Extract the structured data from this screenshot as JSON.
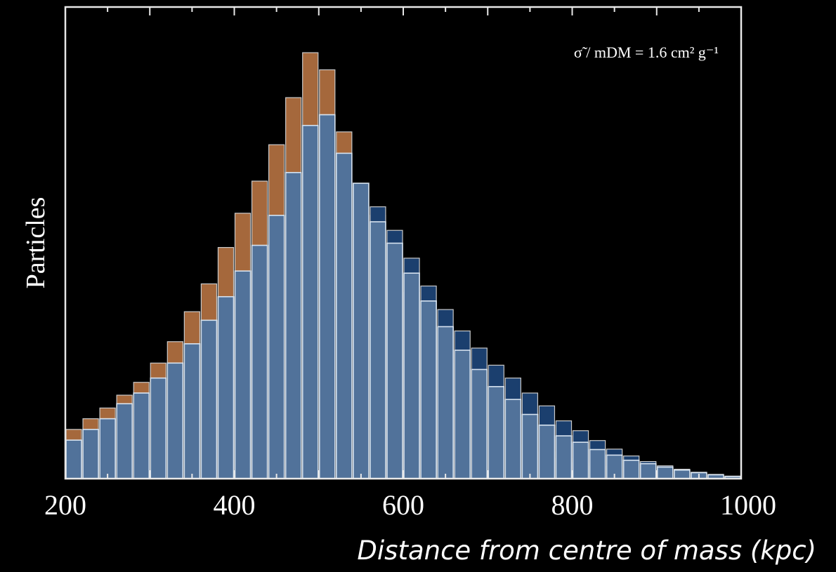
{
  "chart_data": {
    "type": "bar",
    "title": "",
    "annotation": "σ̃ / mDM = 1.6  cm² g⁻¹",
    "xlabel": "Distance from centre of mass (kpc)",
    "ylabel": "Particles",
    "xlim": [
      200,
      1000
    ],
    "ylim": [
      0,
      100
    ],
    "x_ticks": [
      200,
      400,
      600,
      800,
      1000
    ],
    "y_ticks_labeled": false,
    "bin_width": 20,
    "bin_starts": [
      200,
      220,
      240,
      260,
      280,
      300,
      320,
      340,
      360,
      380,
      400,
      420,
      440,
      460,
      480,
      500,
      520,
      540,
      560,
      580,
      600,
      620,
      640,
      660,
      680,
      700,
      720,
      740,
      760,
      780,
      800,
      820,
      840,
      860,
      880,
      900,
      920,
      940,
      960,
      980
    ],
    "series": [
      {
        "color": "#a5683c",
        "values": [
          11.5,
          14.0,
          16.5,
          19.5,
          22.5,
          27.0,
          32.0,
          39.0,
          45.5,
          54.0,
          62.0,
          69.5,
          78.0,
          89.0,
          99.5,
          95.5,
          81.0,
          69.0,
          61.5,
          51.0,
          43.5,
          34.5,
          27.0,
          22.0,
          17.0,
          13.0,
          10.2,
          8.0,
          6.2,
          4.7,
          3.7,
          2.9,
          2.2,
          1.8,
          1.3,
          1.0,
          0.8,
          0.5,
          0.35,
          0.2
        ]
      },
      {
        "color": "#1b3f6e",
        "values": [
          9.0,
          11.5,
          14.0,
          17.5,
          20.0,
          23.5,
          27.0,
          31.5,
          37.0,
          42.5,
          48.5,
          54.5,
          61.5,
          71.5,
          82.5,
          85.0,
          76.0,
          69.0,
          63.5,
          58.0,
          51.5,
          45.0,
          39.5,
          34.5,
          30.5,
          26.5,
          23.5,
          20.0,
          17.0,
          13.5,
          11.2,
          8.9,
          6.9,
          5.3,
          4.0,
          3.0,
          2.2,
          1.5,
          1.0,
          0.6
        ]
      },
      {
        "color": "#7d9cc0",
        "values": [
          9.0,
          11.5,
          14.0,
          17.5,
          20.0,
          23.5,
          27.0,
          31.5,
          37.0,
          42.5,
          48.5,
          54.5,
          61.5,
          71.5,
          82.5,
          85.0,
          76.0,
          69.0,
          60.0,
          55.0,
          48.0,
          41.5,
          35.5,
          30.0,
          25.5,
          21.5,
          18.5,
          15.0,
          12.5,
          10.0,
          8.5,
          6.8,
          5.5,
          4.3,
          3.5,
          2.7,
          2.0,
          1.4,
          0.9,
          0.5
        ]
      }
    ]
  }
}
